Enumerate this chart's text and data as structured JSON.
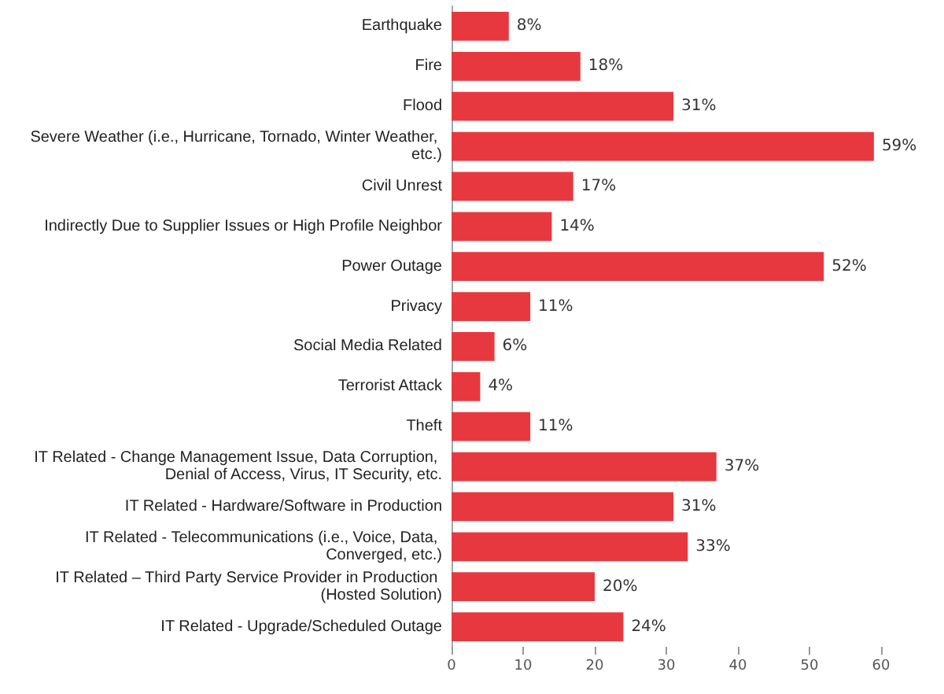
{
  "chart_data": {
    "type": "bar",
    "orientation": "horizontal",
    "categories": [
      "Earthquake",
      "Fire",
      "Flood",
      "Severe Weather (i.e., Hurricane, Tornado, Winter Weather, etc.)",
      "Civil Unrest",
      "Indirectly Due to Supplier Issues or High Profile Neighbor",
      "Power Outage",
      "Privacy",
      "Social Media Related",
      "Terrorist Attack",
      "Theft",
      "IT Related - Change Management Issue, Data Corruption, Denial of Access, Virus, IT Security, etc.",
      "IT Related - Hardware/Software in Production",
      "IT Related - Telecommunications (i.e., Voice, Data, Converged, etc.)",
      "IT Related – Third Party Service Provider in Production (Hosted Solution)",
      "IT Related - Upgrade/Scheduled Outage"
    ],
    "values": [
      8,
      18,
      31,
      59,
      17,
      14,
      52,
      11,
      6,
      4,
      11,
      37,
      31,
      33,
      20,
      24
    ],
    "value_labels": [
      "8%",
      "18%",
      "31%",
      "59%",
      "17%",
      "14%",
      "52%",
      "11%",
      "6%",
      "4%",
      "11%",
      "37%",
      "31%",
      "33%",
      "20%",
      "24%"
    ],
    "color": "#e8383f",
    "xlim": [
      0,
      60
    ],
    "xticks": [
      0,
      10,
      20,
      30,
      40,
      50,
      60
    ],
    "grid": false
  }
}
